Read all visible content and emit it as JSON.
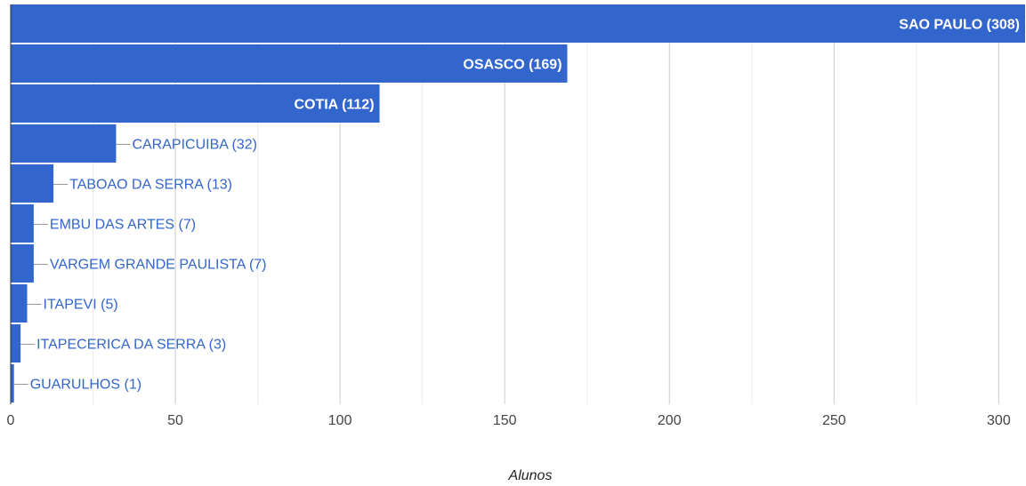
{
  "chart_data": {
    "type": "bar",
    "orientation": "horizontal",
    "categories": [
      "SAO PAULO (308)",
      "OSASCO (169)",
      "COTIA (112)",
      "CARAPICUIBA (32)",
      "TABOAO DA SERRA (13)",
      "EMBU DAS ARTES (7)",
      "VARGEM GRANDE PAULISTA (7)",
      "ITAPEVI (5)",
      "ITAPECERICA DA SERRA (3)",
      "GUARULHOS (1)"
    ],
    "values": [
      308,
      169,
      112,
      32,
      13,
      7,
      7,
      5,
      3,
      1
    ],
    "xlabel": "Alunos",
    "xlim": [
      0,
      308
    ],
    "x_ticks": [
      "0",
      "50",
      "100",
      "150",
      "200",
      "250",
      "300"
    ],
    "x_tick_values": [
      0,
      50,
      100,
      150,
      200,
      250,
      300
    ],
    "grid": true,
    "legend": "none",
    "colors": {
      "bar": "#3366cc",
      "major_grid": "#cccccc",
      "minor_grid": "#ebebeb",
      "axis": "#333333"
    }
  }
}
